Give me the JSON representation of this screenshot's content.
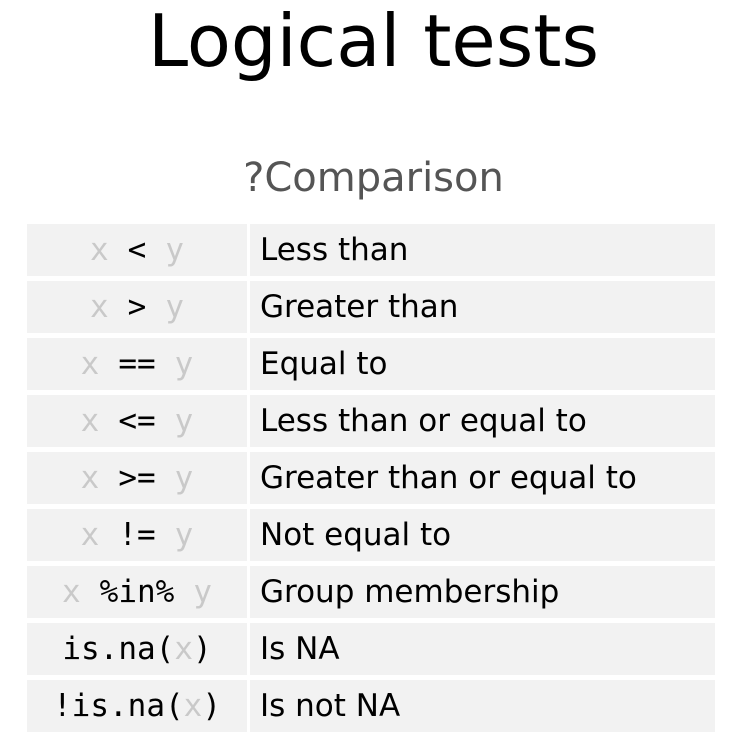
{
  "title": "Logical tests",
  "subtitle": "?Comparison",
  "rows": [
    {
      "left": "x",
      "op": "<",
      "right": "y",
      "desc": "Less than"
    },
    {
      "left": "x",
      "op": ">",
      "right": "y",
      "desc": "Greater than"
    },
    {
      "left": "x",
      "op": "==",
      "right": "y",
      "desc": "Equal to"
    },
    {
      "left": "x",
      "op": "<=",
      "right": "y",
      "desc": "Less than or equal to"
    },
    {
      "left": "x",
      "op": ">=",
      "right": "y",
      "desc": "Greater than or equal to"
    },
    {
      "left": "x",
      "op": "!=",
      "right": "y",
      "desc": "Not equal to"
    },
    {
      "left": "x",
      "op": "%in%",
      "right": "y",
      "desc": "Group membership"
    },
    {
      "fn": "is.na(",
      "arg": "x",
      "close": ")",
      "desc": "Is NA"
    },
    {
      "fn": "!is.na(",
      "arg": "x",
      "close": ")",
      "desc": "Is not NA"
    }
  ],
  "colors": {
    "cell_background": "#f2f2f2",
    "argument_text": "#c9c9c9",
    "subtitle_text": "#555555"
  }
}
